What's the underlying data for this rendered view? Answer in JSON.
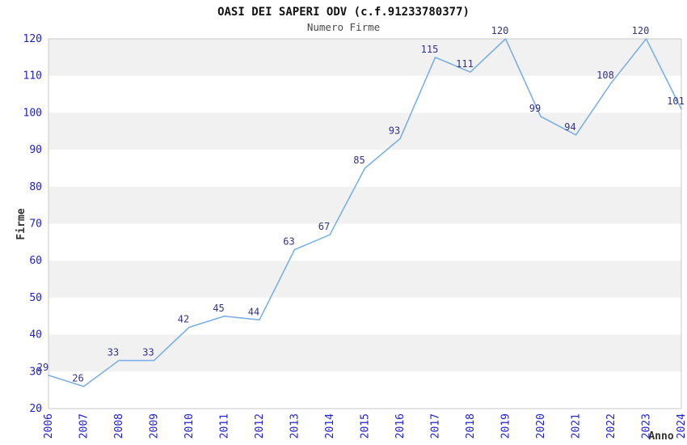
{
  "header": {
    "title": "OASI DEI SAPERI ODV (c.f.91233780377)",
    "subtitle": "Numero Firme"
  },
  "chart_data": {
    "type": "line",
    "title": "OASI DEI SAPERI ODV (c.f.91233780377)",
    "subtitle": "Numero Firme",
    "xlabel": "Anno",
    "ylabel": "Firme",
    "categories": [
      "2006",
      "2007",
      "2008",
      "2009",
      "2010",
      "2011",
      "2012",
      "2013",
      "2014",
      "2015",
      "2016",
      "2017",
      "2018",
      "2019",
      "2020",
      "2021",
      "2022",
      "2023",
      "2024"
    ],
    "series": [
      {
        "name": "Numero Firme",
        "values": [
          29,
          26,
          33,
          33,
          42,
          45,
          44,
          63,
          67,
          85,
          93,
          115,
          111,
          120,
          99,
          94,
          108,
          120,
          101
        ]
      }
    ],
    "ylim": [
      20,
      120
    ],
    "ytick_step": 10,
    "grid": "alternating-horizontal-bands",
    "legend_position": "none",
    "colors": {
      "line": "#7CB0E4",
      "tick_label": "#2222CC",
      "data_label": "#333388",
      "band_gray": "#F1F1F1",
      "band_white": "#FFFFFF",
      "plot_border": "#C9C9C9",
      "title": "#111111",
      "subtitle": "#484848",
      "axis_title": "#333333"
    }
  }
}
